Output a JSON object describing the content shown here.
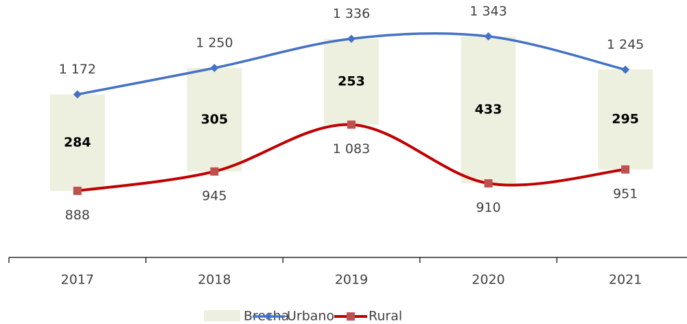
{
  "chart_data": {
    "type": "line",
    "categories": [
      "2017",
      "2018",
      "2019",
      "2020",
      "2021"
    ],
    "series": [
      {
        "name": "Brecha",
        "color": "#eef0df",
        "values": [
          284,
          305,
          253,
          433,
          295
        ]
      },
      {
        "name": "Urbano",
        "color": "#4472c4",
        "values": [
          1172,
          1250,
          1336,
          1343,
          1245
        ],
        "value_labels": [
          "1 172",
          "1 250",
          "1 336",
          "1 343",
          "1 245"
        ]
      },
      {
        "name": "Rural",
        "color": "#c00000",
        "values": [
          888,
          945,
          1083,
          910,
          951
        ],
        "value_labels": [
          "888",
          "945",
          "1 083",
          "910",
          "951"
        ]
      }
    ]
  }
}
